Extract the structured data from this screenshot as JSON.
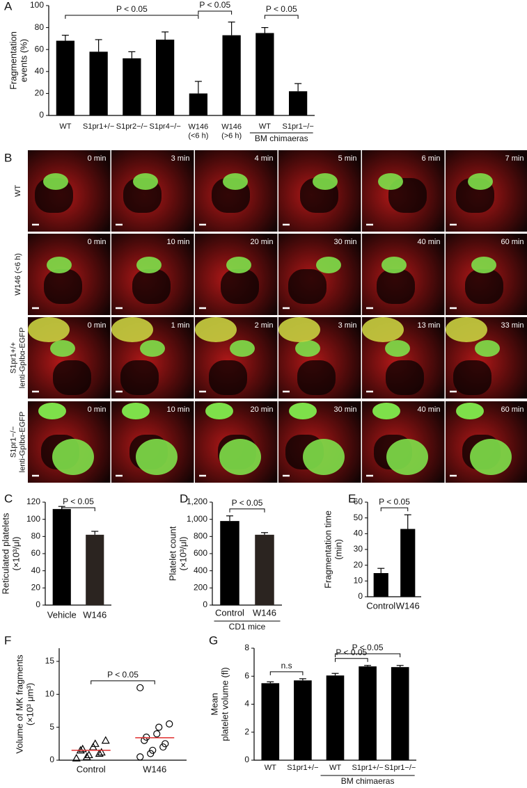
{
  "panel_labels": [
    "A",
    "B",
    "C",
    "D",
    "E",
    "F",
    "G"
  ],
  "panel_b": {
    "rows": [
      {
        "label": [
          "WT"
        ],
        "times": [
          "0 min",
          "3 min",
          "4 min",
          "5 min",
          "6 min",
          "7 min"
        ]
      },
      {
        "label": [
          "W146 (<6 h)"
        ],
        "times": [
          "0 min",
          "10 min",
          "20 min",
          "30 min",
          "40 min",
          "60 min"
        ]
      },
      {
        "label": [
          "S1pr1+/+",
          "lenti-GpIbα-EGFP"
        ],
        "times": [
          "0 min",
          "1 min",
          "2 min",
          "3 min",
          "13 min",
          "33 min"
        ]
      },
      {
        "label": [
          "S1pr1−/−",
          "lenti-GpIbα-EGFP"
        ],
        "times": [
          "0 min",
          "10 min",
          "20 min",
          "30 min",
          "40 min",
          "60 min"
        ]
      }
    ]
  },
  "chart_data": [
    {
      "type": "bar",
      "ylabel": [
        "Fragmentation",
        "events (%)"
      ],
      "categories": [
        "WT",
        "S1pr1+/−",
        "S1pr2−/−",
        "S1pr4−/−",
        [
          "W146",
          "(<6 h)"
        ],
        [
          "W146",
          "(>6 h)"
        ],
        "WT",
        "S1pr1−/−"
      ],
      "values": [
        68,
        58,
        52,
        69,
        20,
        73,
        75,
        22
      ],
      "errors": [
        5,
        11,
        6,
        7,
        11,
        12,
        5,
        7
      ],
      "colors": [
        "#000000"
      ],
      "ylim": [
        0,
        100
      ],
      "yticks": [
        0,
        20,
        40,
        60,
        80,
        100
      ],
      "comparisons": [
        {
          "from": 0,
          "to": 4,
          "label": "P < 0.05"
        },
        {
          "from": 4,
          "to": 5,
          "label": "P < 0.05"
        },
        {
          "from": 6,
          "to": 7,
          "label": "P < 0.05"
        }
      ],
      "group": {
        "label": "BM chimaeras",
        "from": 6,
        "to": 7
      }
    },
    {
      "type": "bar",
      "ylabel": [
        "Reticulated platelets",
        "(×10³/μl)"
      ],
      "categories": [
        "Vehicle",
        "W146"
      ],
      "values": [
        112,
        82
      ],
      "errors": [
        3,
        4
      ],
      "colors": [
        "#000000",
        "#2b2420"
      ],
      "ylim": [
        0,
        120
      ],
      "yticks": [
        0,
        20,
        40,
        60,
        80,
        100,
        120
      ],
      "comparisons": [
        {
          "from": 0,
          "to": 1,
          "label": "P < 0.05"
        }
      ]
    },
    {
      "type": "bar",
      "ylabel": [
        "Platelet count",
        "(×10³/μl)"
      ],
      "categories": [
        "Control",
        "W146"
      ],
      "values": [
        980,
        820
      ],
      "errors": [
        60,
        25
      ],
      "colors": [
        "#000000",
        "#2b2420"
      ],
      "ylim": [
        0,
        1200
      ],
      "yticks": [
        0,
        200,
        400,
        600,
        800,
        {
          "value": 1000,
          "label": "1,000"
        },
        {
          "value": 1200,
          "label": "1,200"
        }
      ],
      "comparisons": [
        {
          "from": 0,
          "to": 1,
          "label": "P < 0.05"
        }
      ],
      "group": {
        "label": "CD1 mice",
        "from": 0,
        "to": 1
      }
    },
    {
      "type": "bar",
      "ylabel": [
        "Fragmentation time",
        "(min)"
      ],
      "categories": [
        "Control",
        "W146"
      ],
      "values": [
        15,
        43
      ],
      "errors": [
        3,
        9
      ],
      "colors": [
        "#000000"
      ],
      "ylim": [
        0,
        60
      ],
      "yticks": [
        0,
        10,
        20,
        30,
        40,
        50,
        60
      ],
      "comparisons": [
        {
          "from": 0,
          "to": 1,
          "label": "P < 0.05"
        }
      ]
    },
    {
      "type": "scatter",
      "ylabel": [
        "Volume of MK fragments",
        "(×10³ μm³)"
      ],
      "categories": [
        "Control",
        "W146"
      ],
      "groups": [
        [
          0.3,
          0.5,
          0.8,
          1.0,
          1.2,
          1.5,
          1.7,
          2.0,
          2.5,
          3.0
        ],
        [
          0.5,
          1.0,
          1.5,
          2.0,
          2.5,
          3.0,
          3.5,
          4.0,
          5.0,
          5.5,
          11.0
        ]
      ],
      "markers": [
        "triangle",
        "circle"
      ],
      "means": [
        1.5,
        3.4
      ],
      "mean_color": "#e03030",
      "ylim": [
        0,
        17
      ],
      "yticks": [
        0,
        5,
        10,
        15
      ],
      "comparisons": [
        {
          "from": 0,
          "to": 1,
          "label": "P < 0.05"
        }
      ]
    },
    {
      "type": "bar",
      "ylabel": [
        "Mean",
        "platelet volume (fl)"
      ],
      "categories": [
        "WT",
        "S1pr1+/−",
        "WT",
        "S1pr1+/−",
        "S1pr1−/−"
      ],
      "values": [
        5.5,
        5.7,
        6.05,
        6.7,
        6.65
      ],
      "errors": [
        0.1,
        0.12,
        0.15,
        0.07,
        0.12
      ],
      "colors": [
        "#000000"
      ],
      "ylim": [
        0,
        8
      ],
      "yticks": [
        0,
        2,
        4,
        6,
        8
      ],
      "comparisons": [
        {
          "from": 0,
          "to": 1,
          "label": "n.s"
        },
        {
          "from": 2,
          "to": 3,
          "label": "P < 0.05"
        },
        {
          "from": 2,
          "to": 4,
          "label": "P < 0.05"
        }
      ],
      "group": {
        "label": "BM chimaeras",
        "from": 2,
        "to": 4
      }
    }
  ]
}
